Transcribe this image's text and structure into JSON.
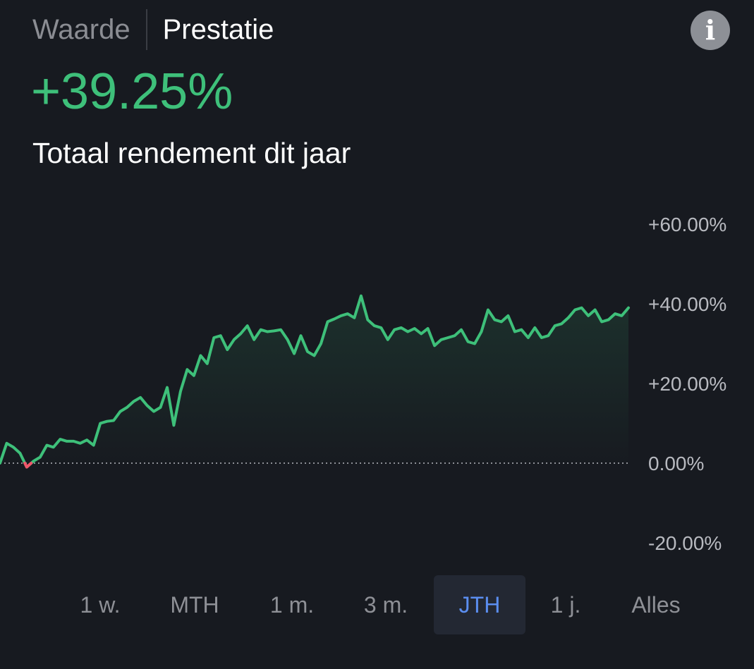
{
  "tabs": [
    {
      "label": "Waarde",
      "active": false
    },
    {
      "label": "Prestatie",
      "active": true
    }
  ],
  "info_icon": "info-icon",
  "headline": {
    "value": "+39.25%",
    "caption": "Totaal rendement dit jaar"
  },
  "colors": {
    "positive": "#3ec07a",
    "negative": "#f0566a",
    "accent": "#5b8ef0",
    "background": "#171a20"
  },
  "chart_data": {
    "type": "area",
    "y_ticks": [
      "+60.00%",
      "+40.00%",
      "+20.00%",
      "0.00%",
      "-20.00%"
    ],
    "ylim": [
      -20,
      60
    ],
    "baseline": 0,
    "baseline_style": "dotted",
    "grid": false,
    "values": [
      0.0,
      5.0,
      4.0,
      2.5,
      -1.0,
      0.5,
      1.5,
      4.5,
      4.0,
      6.0,
      5.5,
      5.5,
      5.0,
      5.8,
      4.5,
      10.0,
      10.5,
      10.7,
      13.0,
      14.0,
      15.5,
      16.5,
      14.5,
      13.0,
      14.0,
      19.0,
      9.5,
      18.0,
      23.5,
      22.0,
      27.0,
      25.0,
      31.5,
      32.0,
      28.5,
      31.0,
      32.5,
      34.5,
      31.0,
      33.5,
      33.0,
      33.2,
      33.5,
      31.0,
      27.5,
      32.0,
      28.0,
      27.0,
      30.0,
      35.5,
      36.2,
      37.0,
      37.5,
      36.5,
      42.0,
      36.0,
      34.5,
      34.0,
      31.0,
      33.5,
      34.0,
      33.0,
      33.8,
      32.5,
      33.8,
      29.5,
      31.0,
      31.5,
      32.0,
      33.5,
      30.5,
      30.0,
      33.0,
      38.5,
      36.0,
      35.5,
      37.0,
      33.0,
      33.5,
      31.5,
      34.0,
      31.5,
      32.0,
      34.5,
      35.0,
      36.5,
      38.5,
      39.0,
      37.0,
      38.5,
      35.5,
      36.0,
      37.5,
      37.0,
      39.0
    ]
  },
  "periods": [
    {
      "label": "1 w.",
      "selected": false
    },
    {
      "label": "MTH",
      "selected": false
    },
    {
      "label": "1 m.",
      "selected": false
    },
    {
      "label": "3 m.",
      "selected": false
    },
    {
      "label": "JTH",
      "selected": true
    },
    {
      "label": "1 j.",
      "selected": false
    },
    {
      "label": "Alles",
      "selected": false
    }
  ]
}
